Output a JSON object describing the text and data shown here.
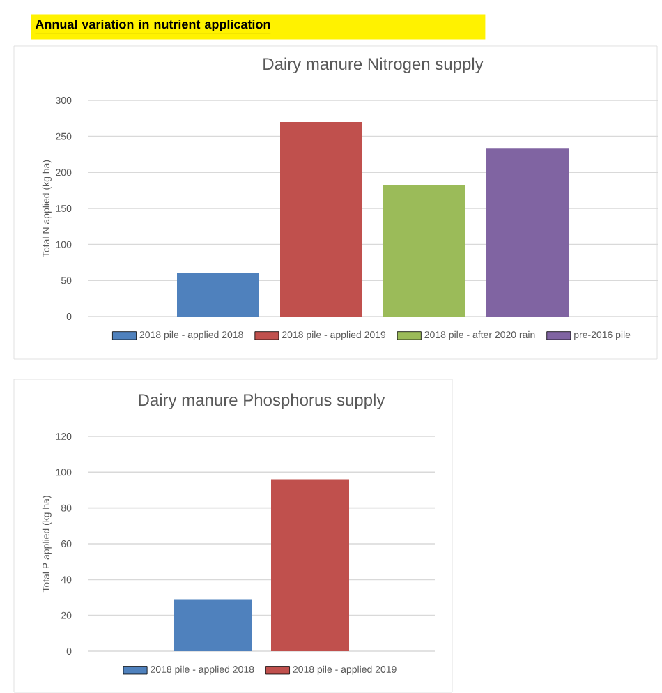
{
  "chart_data": [
    {
      "type": "bar",
      "title": "Dairy manure Nitrogen supply",
      "ylabel": "Total N applied (kg ha)",
      "annotations": [
        "Annual variation in nutrient application"
      ],
      "categories": [
        null
      ],
      "series": [
        {
          "name": "2018 pile - applied 2018",
          "color": "#4f81bd",
          "values": [
            60
          ]
        },
        {
          "name": "2018 pile - applied 2019",
          "color": "#c0504d",
          "values": [
            270
          ]
        },
        {
          "name": "2018 pile - after 2020 rain",
          "color": "#9bbb59",
          "values": [
            182
          ]
        },
        {
          "name": "pre-2016 pile",
          "color": "#8064a2",
          "values": [
            233
          ]
        }
      ],
      "ylim": [
        0,
        300
      ],
      "yticks": [
        0,
        50,
        100,
        150,
        200,
        250,
        300
      ],
      "grid": "y",
      "legend": "bottom"
    },
    {
      "type": "bar",
      "title": "Dairy manure Phosphorus  supply",
      "ylabel": "Total P applied (kg ha)",
      "categories": [
        null
      ],
      "series": [
        {
          "name": "2018 pile - applied 2018",
          "color": "#4f81bd",
          "values": [
            29
          ]
        },
        {
          "name": "2018 pile - applied 2019",
          "color": "#c0504d",
          "values": [
            96
          ]
        }
      ],
      "ylim": [
        0,
        120
      ],
      "yticks": [
        0,
        20,
        40,
        60,
        80,
        100,
        120
      ],
      "grid": "y",
      "legend": "bottom"
    }
  ]
}
